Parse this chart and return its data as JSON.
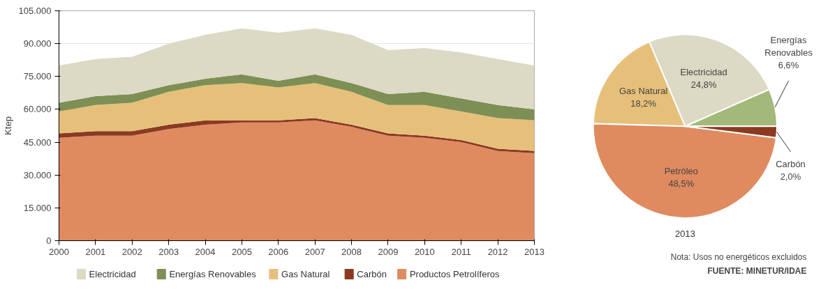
{
  "chart_data": [
    {
      "type": "area",
      "stacked": true,
      "ylabel": "Ktep",
      "x": [
        2000,
        2001,
        2002,
        2003,
        2004,
        2005,
        2006,
        2007,
        2008,
        2009,
        2010,
        2011,
        2012,
        2013
      ],
      "xlim": [
        2000,
        2013
      ],
      "xticks": [
        2000,
        2001,
        2002,
        2003,
        2004,
        2005,
        2006,
        2007,
        2008,
        2009,
        2010,
        2011,
        2012,
        2013
      ],
      "ylim": [
        0,
        105000
      ],
      "yticks": [
        0,
        {
          "value": 15000,
          "label": "15.000"
        },
        {
          "value": 30000,
          "label": "30.000"
        },
        {
          "value": 45000,
          "label": "45.000"
        },
        {
          "value": 60000,
          "label": "60.000"
        },
        {
          "value": 75000,
          "label": "75.000"
        },
        {
          "value": 90000,
          "label": "90.000"
        },
        {
          "value": 105000,
          "label": "105.000"
        }
      ],
      "grid": "y",
      "legend": "bottom",
      "series": [
        {
          "name": "Productos Petrolíferos",
          "color": "#e08a60",
          "values": [
            47000,
            48000,
            48000,
            51000,
            53000,
            54000,
            54000,
            55000,
            52000,
            48000,
            47000,
            45000,
            41000,
            40000
          ]
        },
        {
          "name": "Carbón",
          "color": "#8b3a22",
          "values": [
            2000,
            2000,
            2000,
            2000,
            2000,
            1000,
            1000,
            1000,
            1000,
            1000,
            1000,
            1000,
            1000,
            1000
          ]
        },
        {
          "name": "Gas Natural",
          "color": "#e6c07a",
          "values": [
            10000,
            12000,
            13000,
            15000,
            16000,
            17000,
            15000,
            16000,
            15000,
            13000,
            14000,
            13000,
            14000,
            14000
          ]
        },
        {
          "name": "Energías Renovables",
          "color": "#7d8f55",
          "values": [
            4000,
            4000,
            4000,
            3000,
            3000,
            4000,
            3000,
            4000,
            4000,
            5000,
            6000,
            6000,
            6000,
            5000
          ]
        },
        {
          "name": "Electricidad",
          "color": "#dcd9c4",
          "values": [
            17000,
            17000,
            17000,
            19000,
            20000,
            21000,
            22000,
            21000,
            22000,
            20000,
            20000,
            21000,
            21000,
            20000
          ]
        }
      ]
    },
    {
      "type": "pie",
      "title": "2013",
      "categories": [
        "Energías Renovables",
        "Electricidad",
        "Gas Natural",
        "Petróleo",
        "Carbón"
      ],
      "values": [
        6.6,
        24.8,
        18.2,
        48.5,
        2.0
      ],
      "value_labels": [
        "6,6%",
        "24,8%",
        "18,2%",
        "48,5%",
        "2,0%"
      ],
      "colors": [
        "#a3b97a",
        "#dcd9c4",
        "#e6c07a",
        "#e08a60",
        "#8b3a22"
      ],
      "annotations": [
        "Nota: Usos no energéticos excluidos",
        "FUENTE: MINETUR/IDAE"
      ]
    }
  ]
}
